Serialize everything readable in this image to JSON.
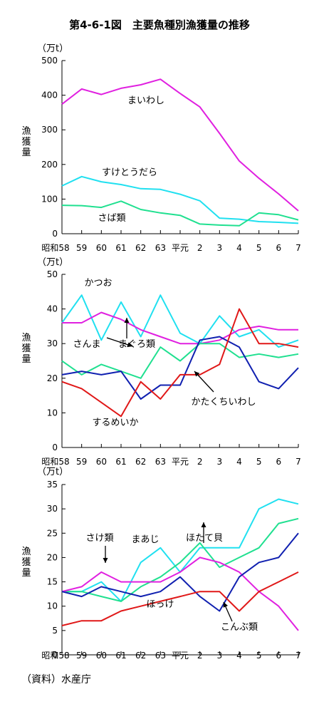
{
  "title": "第4-6-1図　主要魚種別漁獲量の推移",
  "source": "（資料）水産庁",
  "x_labels": [
    "昭和58",
    "59",
    "60",
    "61",
    "62",
    "63",
    "平元",
    "2",
    "3",
    "4",
    "5",
    "6",
    "7"
  ],
  "colors": {
    "magenta": "#e020e0",
    "cyan": "#20e0f0",
    "green": "#20e090",
    "red": "#e01818",
    "blue": "#1020b0"
  },
  "chart_data": [
    {
      "type": "line",
      "unit": "（万t）",
      "ylabel": "漁獲量",
      "ylim": [
        0,
        500
      ],
      "yticks": [
        0,
        100,
        200,
        300,
        400,
        500
      ],
      "x": [
        "昭和58",
        "59",
        "60",
        "61",
        "62",
        "63",
        "平元",
        "2",
        "3",
        "4",
        "5",
        "6",
        "7"
      ],
      "series": [
        {
          "name": "まいわし",
          "color": "#e020e0",
          "values": [
            374,
            418,
            402,
            420,
            430,
            446,
            405,
            366,
            290,
            210,
            160,
            115,
            66
          ]
        },
        {
          "name": "すけとうだら",
          "color": "#20e0f0",
          "values": [
            138,
            165,
            150,
            142,
            130,
            128,
            114,
            95,
            45,
            42,
            35,
            33,
            30
          ]
        },
        {
          "name": "さば類",
          "color": "#20e090",
          "values": [
            82,
            81,
            76,
            94,
            70,
            60,
            53,
            28,
            25,
            23,
            60,
            55,
            40
          ]
        }
      ],
      "annotations": [
        {
          "text": "まいわし",
          "series": "まいわし"
        },
        {
          "text": "すけとうだら",
          "series": "すけとうだら"
        },
        {
          "text": "さば類",
          "series": "さば類"
        }
      ]
    },
    {
      "type": "line",
      "unit": "（万t）",
      "ylabel": "漁獲量",
      "ylim": [
        0,
        50
      ],
      "yticks": [
        0,
        10,
        20,
        30,
        40,
        50
      ],
      "x": [
        "昭和58",
        "59",
        "60",
        "61",
        "62",
        "63",
        "平元",
        "2",
        "3",
        "4",
        "5",
        "6",
        "7"
      ],
      "series": [
        {
          "name": "かつお",
          "color": "#20e0f0",
          "values": [
            36,
            44,
            31,
            42,
            32,
            44,
            33,
            30,
            38,
            32,
            34,
            29,
            31
          ]
        },
        {
          "name": "まぐろ類",
          "color": "#e020e0",
          "values": [
            36,
            36,
            39,
            37,
            34,
            32,
            30,
            30,
            31,
            34,
            35,
            34,
            34
          ]
        },
        {
          "name": "さんま",
          "color": "#20e090",
          "values": [
            25,
            21,
            24,
            22,
            20,
            29,
            25,
            30,
            30,
            26,
            27,
            26,
            27
          ]
        },
        {
          "name": "かたくちいわし",
          "color": "#1020b0",
          "values": [
            21,
            22,
            21,
            22,
            14,
            18,
            18,
            31,
            32,
            29,
            19,
            17,
            23
          ]
        },
        {
          "name": "するめいか",
          "color": "#e01818",
          "values": [
            19,
            17,
            13,
            9,
            19,
            14,
            21,
            21,
            24,
            40,
            30,
            30,
            29
          ]
        }
      ],
      "annotations": [
        {
          "text": "かつお",
          "series": "かつお"
        },
        {
          "text": "まぐろ類",
          "series": "まぐろ類"
        },
        {
          "text": "さんま",
          "series": "さんま"
        },
        {
          "text": "かたくちいわし",
          "series": "かたくちいわし"
        },
        {
          "text": "するめいか",
          "series": "するめいか"
        }
      ]
    },
    {
      "type": "line",
      "unit": "（万t）",
      "ylabel": "漁獲量",
      "ylim": [
        0,
        35
      ],
      "yticks": [
        0,
        5,
        10,
        15,
        20,
        25,
        30,
        35
      ],
      "x": [
        "昭和58",
        "59",
        "60",
        "61",
        "62",
        "63",
        "平元",
        "2",
        "3",
        "4",
        "5",
        "6",
        "7"
      ],
      "series": [
        {
          "name": "ほたて貝",
          "color": "#20e0f0",
          "values": [
            13,
            13,
            15,
            11,
            19,
            22,
            17,
            22,
            22,
            22,
            30,
            32,
            31
          ]
        },
        {
          "name": "まあじ",
          "color": "#20e090",
          "values": [
            13,
            13,
            12,
            11,
            14,
            16,
            19,
            23,
            18,
            20,
            22,
            27,
            28
          ]
        },
        {
          "name": "さけ類",
          "color": "#e020e0",
          "values": [
            13,
            14,
            17,
            15,
            15,
            15,
            17,
            20,
            19,
            17,
            13,
            10,
            5
          ]
        },
        {
          "name": "こんぶ類",
          "color": "#1020b0",
          "values": [
            13,
            12,
            14,
            13,
            12,
            13,
            16,
            12,
            9,
            16,
            19,
            20,
            25
          ]
        },
        {
          "name": "ほっけ",
          "color": "#e01818",
          "values": [
            6,
            7,
            7,
            9,
            10,
            11,
            12,
            13,
            13,
            9,
            13,
            15,
            17
          ]
        }
      ],
      "annotations": [
        {
          "text": "ほたて貝",
          "series": "ほたて貝"
        },
        {
          "text": "さけ類",
          "series": "さけ類"
        },
        {
          "text": "まあじ",
          "series": "まあじ"
        },
        {
          "text": "ほっけ",
          "series": "ほっけ"
        },
        {
          "text": "こんぶ類",
          "series": "こんぶ類"
        }
      ]
    }
  ]
}
